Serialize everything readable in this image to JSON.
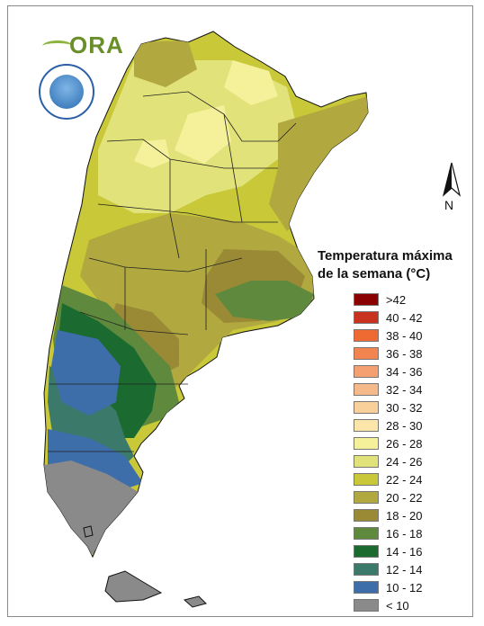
{
  "logo": {
    "text": "ORA"
  },
  "compass": {
    "label": "N"
  },
  "legend": {
    "title_line1": "Temperatura máxima",
    "title_line2": "de la semana (°C)",
    "classes": [
      {
        "label": ">42",
        "color": "#8b0000"
      },
      {
        "label": "40 - 42",
        "color": "#c8321e"
      },
      {
        "label": "38 - 40",
        "color": "#ef6a32"
      },
      {
        "label": "36 - 38",
        "color": "#f2844f"
      },
      {
        "label": "34 - 36",
        "color": "#f4a070"
      },
      {
        "label": "32 - 34",
        "color": "#f6b98a"
      },
      {
        "label": "30 - 32",
        "color": "#f9cf9a"
      },
      {
        "label": "28 - 30",
        "color": "#fbe5a8"
      },
      {
        "label": "26 - 28",
        "color": "#f4f19a"
      },
      {
        "label": "24 - 26",
        "color": "#e2e27a"
      },
      {
        "label": "22 - 24",
        "color": "#c8c838"
      },
      {
        "label": "20 - 22",
        "color": "#b1a940"
      },
      {
        "label": "18 - 20",
        "color": "#9a8a36"
      },
      {
        "label": "16 - 18",
        "color": "#5f8a3d"
      },
      {
        "label": "14 - 16",
        "color": "#1b6b30"
      },
      {
        "label": "12 - 14",
        "color": "#3b7a6a"
      },
      {
        "label": "10 - 12",
        "color": "#3e6eaa"
      },
      {
        "label": "< 10",
        "color": "#8a8a8a"
      }
    ]
  }
}
